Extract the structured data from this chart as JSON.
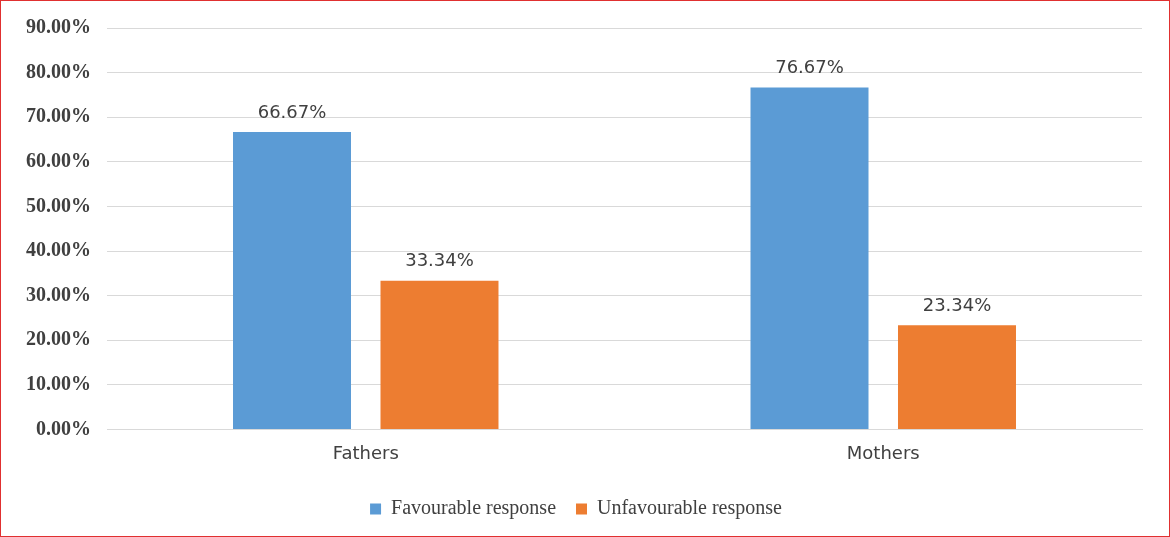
{
  "chart_data": {
    "type": "bar",
    "categories": [
      "Fathers",
      "Mothers"
    ],
    "series": [
      {
        "name": "Favourable response",
        "color": "#5b9bd5",
        "values": [
          66.67,
          76.67
        ],
        "value_labels": [
          "66.67%",
          "76.67%"
        ]
      },
      {
        "name": "Unfavourable response",
        "color": "#ed7d31",
        "values": [
          33.34,
          23.34
        ],
        "value_labels": [
          "33.34%",
          "23.34%"
        ]
      }
    ],
    "ylim": [
      0,
      90
    ],
    "yticks": [
      {
        "value": 0,
        "label": "0.00%"
      },
      {
        "value": 10,
        "label": "10.00%"
      },
      {
        "value": 20,
        "label": "20.00%"
      },
      {
        "value": 30,
        "label": "30.00%"
      },
      {
        "value": 40,
        "label": "40.00%"
      },
      {
        "value": 50,
        "label": "50.00%"
      },
      {
        "value": 60,
        "label": "60.00%"
      },
      {
        "value": 70,
        "label": "70.00%"
      },
      {
        "value": 80,
        "label": "80.00%"
      },
      {
        "value": 90,
        "label": "90.00%"
      }
    ],
    "grid": "y",
    "legend": "bottom"
  }
}
